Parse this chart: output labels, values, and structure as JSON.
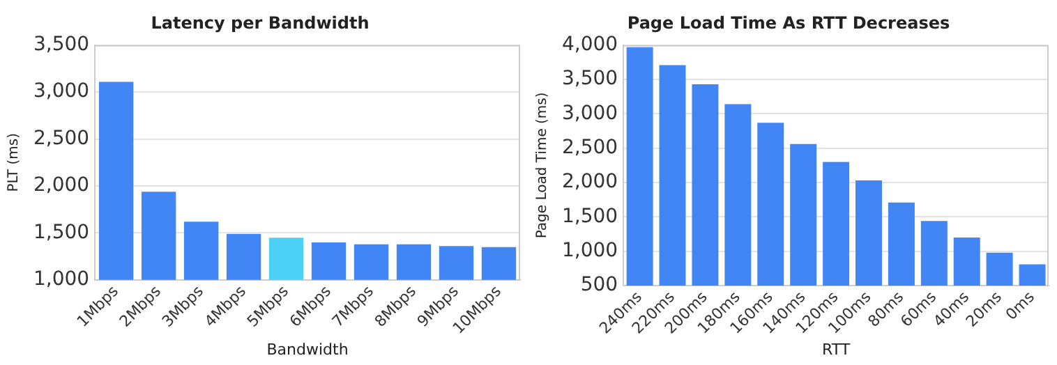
{
  "chart_data": [
    {
      "type": "bar",
      "title": "Latency per Bandwidth",
      "xlabel": "Bandwidth",
      "ylabel": "PLT (ms)",
      "categories": [
        "1Mbps",
        "2Mbps",
        "3Mbps",
        "4Mbps",
        "5Mbps",
        "6Mbps",
        "7Mbps",
        "8Mbps",
        "9Mbps",
        "10Mbps"
      ],
      "values": [
        3110,
        1940,
        1620,
        1490,
        1450,
        1400,
        1380,
        1380,
        1360,
        1350
      ],
      "colors": [
        "#4285f4",
        "#4285f4",
        "#4285f4",
        "#4285f4",
        "#4dd0f7",
        "#4285f4",
        "#4285f4",
        "#4285f4",
        "#4285f4",
        "#4285f4"
      ],
      "ylim": [
        1000,
        3500
      ],
      "yticks": [
        {
          "value": 1000,
          "label": "1,000"
        },
        {
          "value": 1500,
          "label": "1,500"
        },
        {
          "value": 2000,
          "label": "2,000"
        },
        {
          "value": 2500,
          "label": "2,500"
        },
        {
          "value": 3000,
          "label": "3,000"
        },
        {
          "value": 3500,
          "label": "3,500"
        }
      ],
      "grid": "y",
      "legend": false
    },
    {
      "type": "bar",
      "title": "Page Load Time As RTT Decreases",
      "xlabel": "RTT",
      "ylabel": "Page Load Time (ms)",
      "categories": [
        "240ms",
        "220ms",
        "200ms",
        "180ms",
        "160ms",
        "140ms",
        "120ms",
        "100ms",
        "80ms",
        "60ms",
        "40ms",
        "20ms",
        "0ms"
      ],
      "values": [
        3970,
        3710,
        3430,
        3140,
        2870,
        2560,
        2300,
        2030,
        1710,
        1440,
        1200,
        980,
        810
      ],
      "color": "#4285f4",
      "ylim": [
        500,
        4000
      ],
      "yticks": [
        {
          "value": 500,
          "label": "500"
        },
        {
          "value": 1000,
          "label": "1,000"
        },
        {
          "value": 1500,
          "label": "1,500"
        },
        {
          "value": 2000,
          "label": "2,000"
        },
        {
          "value": 2500,
          "label": "2,500"
        },
        {
          "value": 3000,
          "label": "3,000"
        },
        {
          "value": 3500,
          "label": "3,500"
        },
        {
          "value": 4000,
          "label": "4,000"
        }
      ],
      "grid": "y",
      "legend": false
    }
  ]
}
